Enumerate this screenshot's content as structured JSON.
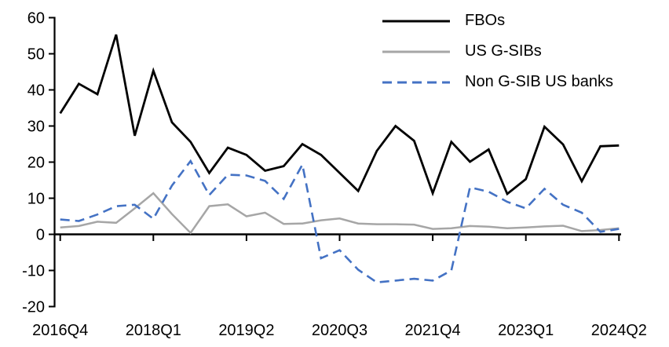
{
  "figure": {
    "background": "#ffffff",
    "text_color": "#000000"
  },
  "chart_data": {
    "type": "line",
    "title": "",
    "xlabel": "",
    "ylabel": "",
    "ylim": [
      -20,
      60
    ],
    "y_ticks": [
      60,
      50,
      40,
      30,
      20,
      10,
      0,
      -10,
      -20
    ],
    "x_tick_labels": [
      "2016Q4",
      "2018Q1",
      "2019Q2",
      "2020Q3",
      "2021Q4",
      "2023Q1",
      "2024Q2"
    ],
    "x_tick_indices": [
      0,
      5,
      10,
      15,
      20,
      25,
      30
    ],
    "categories": [
      "2016Q4",
      "2017Q1",
      "2017Q2",
      "2017Q3",
      "2017Q4",
      "2018Q1",
      "2018Q2",
      "2018Q3",
      "2018Q4",
      "2019Q1",
      "2019Q2",
      "2019Q3",
      "2019Q4",
      "2020Q1",
      "2020Q2",
      "2020Q3",
      "2020Q4",
      "2021Q1",
      "2021Q2",
      "2021Q3",
      "2021Q4",
      "2022Q1",
      "2022Q2",
      "2022Q3",
      "2022Q4",
      "2023Q1",
      "2023Q2",
      "2023Q3",
      "2023Q4",
      "2024Q1",
      "2024Q2"
    ],
    "grid": false,
    "legend_position": "top-right",
    "series": [
      {
        "name": "FBOs",
        "color": "#000000",
        "style": "solid",
        "values": [
          33.5,
          41.7,
          38.8,
          55.3,
          27.3,
          45.3,
          31.0,
          25.6,
          17.0,
          24.0,
          22.0,
          17.6,
          18.9,
          25.0,
          22.0,
          17.0,
          12.0,
          23.1,
          30.0,
          25.9,
          11.4,
          25.6,
          20.1,
          23.5,
          11.2,
          15.3,
          29.8,
          24.9,
          14.7,
          24.4,
          24.6
        ]
      },
      {
        "name": "US G-SIBs",
        "color": "#a6a6a6",
        "style": "solid",
        "values": [
          1.9,
          2.3,
          3.5,
          3.2,
          7.2,
          11.4,
          5.6,
          0.4,
          7.8,
          8.3,
          5.0,
          6.0,
          2.9,
          3.0,
          3.9,
          4.4,
          3.0,
          2.8,
          2.8,
          2.7,
          1.5,
          1.7,
          2.3,
          2.1,
          1.7,
          1.9,
          2.2,
          2.4,
          0.9,
          1.2,
          1.7
        ]
      },
      {
        "name": "Non G-SIB US banks",
        "color": "#4472c4",
        "style": "dashed",
        "values": [
          4.1,
          3.7,
          5.5,
          7.8,
          8.2,
          4.3,
          13.5,
          20.3,
          10.9,
          16.5,
          16.3,
          14.8,
          9.8,
          19.3,
          -6.6,
          -4.4,
          -9.8,
          -13.3,
          -12.8,
          -12.3,
          -12.8,
          -10.0,
          13.0,
          11.8,
          9.0,
          7.2,
          12.6,
          8.2,
          6.0,
          0.7,
          1.5
        ]
      }
    ]
  }
}
